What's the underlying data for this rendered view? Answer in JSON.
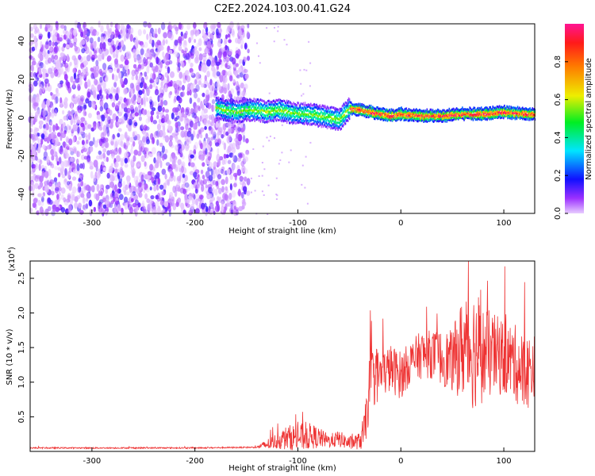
{
  "title": "C2E2.2024.103.00.41.G24",
  "chart_data": [
    {
      "type": "heatmap",
      "xlabel": "Height of straight line (km)",
      "ylabel": "Frequency (Hz)",
      "xlim": [
        -360,
        130
      ],
      "ylim": [
        -50,
        49
      ],
      "xticks": [
        -300,
        -200,
        -100,
        0,
        100
      ],
      "yticks": [
        -40,
        -20,
        0,
        20,
        40
      ],
      "grid": false,
      "colorbar": {
        "label": "Normalized spectral amplitude",
        "range": [
          0,
          1
        ],
        "ticks": [
          0.0,
          0.2,
          0.4,
          0.6,
          0.8
        ],
        "colormap": "rainbow (violet→blue→cyan→green→yellow→orange→red→pink)",
        "position": "right"
      },
      "regions": [
        {
          "x_range": [
            -360,
            -148
          ],
          "description_level": "noise",
          "amplitude_range": [
            0.0,
            0.15
          ],
          "freq_range": [
            -50,
            49
          ]
        },
        {
          "x_range": [
            -180,
            -30
          ],
          "center_freq": [
            6,
            5,
            4,
            3,
            2,
            1,
            0,
            -2,
            -4,
            -6
          ],
          "amplitude_range": [
            0.3,
            0.6
          ]
        },
        {
          "x_range": [
            -50,
            130
          ],
          "center_freq_approx": 2,
          "amplitude_range": [
            0.6,
            0.95
          ]
        }
      ],
      "trace_centre": {
        "x": [
          -180,
          -170,
          -160,
          -150,
          -140,
          -130,
          -120,
          -110,
          -100,
          -90,
          -80,
          -70,
          -60,
          -50,
          -40,
          -30,
          -20,
          -10,
          0,
          20,
          40,
          60,
          80,
          100,
          120,
          130
        ],
        "freq": [
          5,
          4,
          3,
          4,
          4,
          3,
          4,
          3,
          2,
          2,
          1,
          0,
          -1,
          5,
          4,
          3,
          2,
          1,
          2,
          1,
          1,
          2,
          2,
          3,
          2,
          2
        ]
      }
    },
    {
      "type": "line",
      "xlabel": "Height of straight line (km)",
      "ylabel": "SNR (10 * v/v)",
      "y_multiplier_label": "(x10",
      "y_multiplier_exp": "4",
      "y_multiplier_close": ")",
      "xlim": [
        -360,
        130
      ],
      "ylim": [
        0,
        2.75
      ],
      "xticks": [
        -300,
        -200,
        -100,
        0,
        100
      ],
      "yticks": [
        0.5,
        1.0,
        1.5,
        2.0,
        2.5
      ],
      "ytick_labels": [
        "0.5",
        "1.0",
        "1.5",
        "2.0",
        "2.5"
      ],
      "grid": false,
      "color": "#ee3333",
      "envelope": {
        "x": [
          -360,
          -300,
          -200,
          -140,
          -130,
          -120,
          -110,
          -100,
          -90,
          -80,
          -70,
          -60,
          -50,
          -40,
          -35,
          -30,
          -25,
          -20,
          -10,
          0,
          10,
          20,
          30,
          40,
          50,
          60,
          70,
          80,
          90,
          100,
          110,
          120,
          130
        ],
        "y": [
          0.05,
          0.05,
          0.05,
          0.06,
          0.1,
          0.15,
          0.2,
          0.2,
          0.22,
          0.2,
          0.15,
          0.18,
          0.12,
          0.15,
          0.3,
          1.0,
          1.1,
          1.1,
          1.2,
          1.1,
          1.3,
          1.4,
          1.4,
          1.35,
          1.3,
          1.5,
          1.5,
          1.4,
          1.4,
          1.35,
          1.3,
          1.1,
          1.25
        ],
        "spike_amp": [
          0.01,
          0.01,
          0.01,
          0.01,
          0.08,
          0.12,
          0.18,
          0.2,
          0.2,
          0.15,
          0.1,
          0.12,
          0.1,
          0.12,
          0.3,
          0.45,
          0.45,
          0.35,
          0.35,
          0.35,
          0.3,
          0.35,
          0.35,
          0.4,
          0.45,
          0.75,
          0.9,
          0.7,
          0.6,
          0.55,
          0.55,
          0.6,
          0.45
        ]
      }
    }
  ]
}
